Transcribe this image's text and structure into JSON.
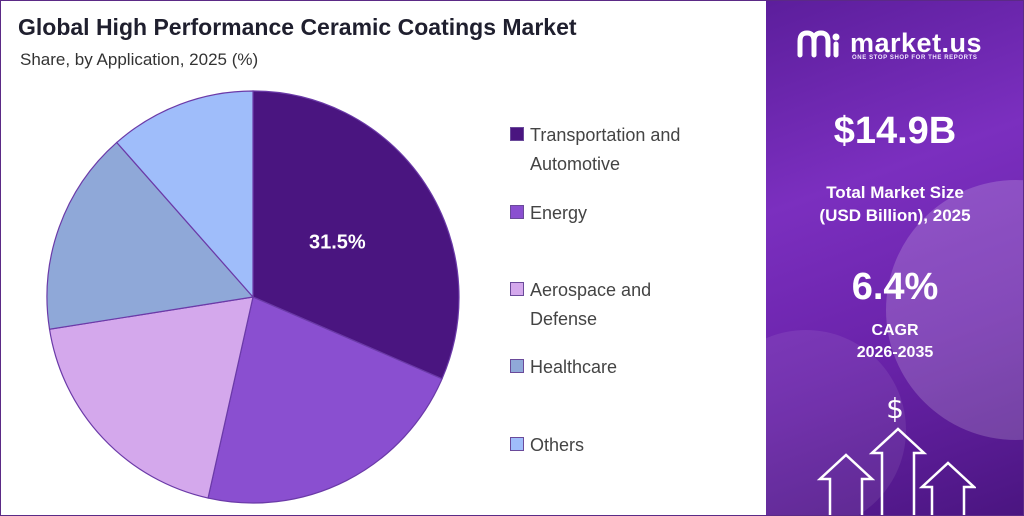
{
  "header": {
    "title": "Global High Performance Ceramic Coatings Market",
    "subtitle": "Share, by Application, 2025 (%)"
  },
  "chart_data": {
    "type": "pie",
    "categories": [
      "Transportation and Automotive",
      "Energy",
      "Aerospace and Defense",
      "Healthcare",
      "Others"
    ],
    "values": [
      31.5,
      22.0,
      19.0,
      16.0,
      11.5
    ],
    "colors": [
      "#4a1580",
      "#8a4fd0",
      "#d4a8ec",
      "#8fa8d8",
      "#9fbdfa"
    ],
    "data_labels": [
      "31.5%",
      "",
      "",
      "",
      ""
    ],
    "legend_position": "right"
  },
  "legend": {
    "items": [
      {
        "lines": [
          "Transportation and",
          "Automotive"
        ]
      },
      {
        "lines": [
          "Energy"
        ]
      },
      {
        "lines": [
          "Aerospace and",
          "Defense"
        ]
      },
      {
        "lines": [
          "Healthcare"
        ]
      },
      {
        "lines": [
          "Others"
        ]
      }
    ]
  },
  "sidebar": {
    "brand": "market.us",
    "tagline": "ONE STOP SHOP FOR THE REPORTS",
    "market_size_value": "$14.9B",
    "market_size_label_1": "Total Market Size",
    "market_size_label_2": "(USD Billion), 2025",
    "cagr_value": "6.4%",
    "cagr_label_1": "CAGR",
    "cagr_label_2": "2026-2035",
    "dollar_symbol": "$",
    "logo_icon": "market-us-logo-icon",
    "growth_icon": "growth-arrows-icon"
  }
}
